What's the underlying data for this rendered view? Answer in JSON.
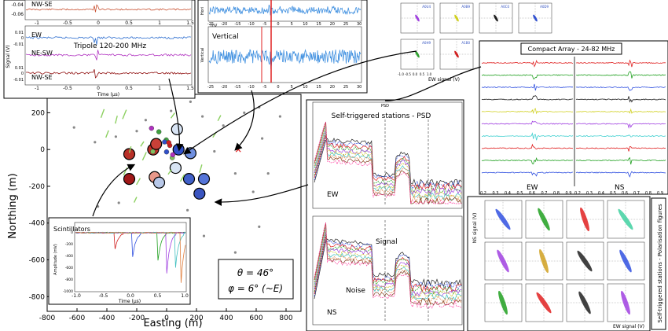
{
  "chart_data": [
    {
      "id": "main-map",
      "type": "scatter",
      "xlabel": "Easting (m)",
      "ylabel": "Northing (m)",
      "xlim": [
        -800,
        900
      ],
      "ylim": [
        -880,
        300
      ],
      "xticks": [
        -800,
        -600,
        -400,
        -200,
        0,
        200,
        400,
        600,
        800
      ],
      "yticks": [
        200,
        0,
        -200,
        -400,
        -600,
        -800
      ],
      "scintillators": [
        {
          "x": -90,
          "y": 0,
          "color": "#c03028"
        },
        {
          "x": 80,
          "y": 0,
          "color": "#3050c8"
        },
        {
          "x": 160,
          "y": -20,
          "color": "#7090e0"
        },
        {
          "x": -250,
          "y": -25,
          "color": "#b83028"
        },
        {
          "x": -250,
          "y": -160,
          "color": "#a01818"
        },
        {
          "x": -80,
          "y": -150,
          "color": "#e8988a"
        },
        {
          "x": 150,
          "y": -160,
          "color": "#4060c8"
        },
        {
          "x": 250,
          "y": -160,
          "color": "#5575d8"
        },
        {
          "x": 220,
          "y": -240,
          "color": "#3a55c0"
        },
        {
          "x": -70,
          "y": 30,
          "color": "#c84038"
        },
        {
          "x": 70,
          "y": 110,
          "color": "#d8e4f4"
        },
        {
          "x": 60,
          "y": -100,
          "color": "#d8e4f4"
        },
        {
          "x": -50,
          "y": -180,
          "color": "#b8c8e8"
        }
      ],
      "antennas": [
        {
          "x": -140,
          "y": 160
        },
        {
          "x": -340,
          "y": 70
        },
        {
          "x": -480,
          "y": 40
        },
        {
          "x": -200,
          "y": 100
        },
        {
          "x": 30,
          "y": 210
        },
        {
          "x": 160,
          "y": 260
        },
        {
          "x": 240,
          "y": 180
        },
        {
          "x": 380,
          "y": 130
        },
        {
          "x": 520,
          "y": 200
        },
        {
          "x": 640,
          "y": 60
        },
        {
          "x": 320,
          "y": -10
        },
        {
          "x": 460,
          "y": -130
        },
        {
          "x": 580,
          "y": -230
        },
        {
          "x": 680,
          "y": -130
        },
        {
          "x": 140,
          "y": -330
        },
        {
          "x": -320,
          "y": -290
        },
        {
          "x": -460,
          "y": -310
        },
        {
          "x": -120,
          "y": -480
        },
        {
          "x": 40,
          "y": -540
        },
        {
          "x": 250,
          "y": -470
        },
        {
          "x": 460,
          "y": -560
        },
        {
          "x": 620,
          "y": -420
        },
        {
          "x": 740,
          "y": -630
        },
        {
          "x": 100,
          "y": -700
        },
        {
          "x": -280,
          "y": -760
        },
        {
          "x": 380,
          "y": -800
        },
        {
          "x": 620,
          "y": 230
        },
        {
          "x": -620,
          "y": 120
        },
        {
          "x": 760,
          "y": 180
        }
      ],
      "annotation": {
        "theta": "θ = 46°",
        "phi": "φ = 6° (~E)"
      }
    },
    {
      "id": "tripole",
      "type": "line",
      "title": "Tripole 120-200 MHz",
      "ylabel": "Signal (V)",
      "xlabel": "Time (μs)",
      "xticks": [
        "-1",
        "-0.5",
        "0",
        "0.5",
        "1",
        "1.5"
      ],
      "top_yticks": [
        "-0.04",
        "-0.06"
      ],
      "yticks": [
        "0.01",
        "0",
        "-0.01",
        "0.01",
        "0",
        "-0.01"
      ],
      "series": [
        {
          "name": "NW-SE",
          "color": "#c85030"
        },
        {
          "name": "EW",
          "color": "#3070d0"
        },
        {
          "name": "NE-SW",
          "color": "#b030c0"
        },
        {
          "name": "NW-SE",
          "color": "#901010"
        }
      ]
    },
    {
      "id": "vertical",
      "type": "line",
      "title": "Vertical",
      "color": "#4090e0",
      "xticks": [
        "-25",
        "-20",
        "-15",
        "-10",
        "-5",
        "0",
        "5",
        "10",
        "15",
        "20",
        "25",
        "30"
      ],
      "ylabel_top": "Hori",
      "ylabel": "Vertical",
      "unit": "mV"
    },
    {
      "id": "small-polarisation",
      "type": "scatter",
      "xlabel": "EW signal (V)",
      "labels": [
        "A0U4",
        "A0B9",
        "A0C0",
        "A0D9",
        "A0H9",
        "A1B0"
      ],
      "colors": [
        "#a040e0",
        "#d0d020",
        "#202020",
        "#3050d0",
        "#30a030",
        "#d02020"
      ],
      "xticks": [
        "-1.0",
        "-0.5",
        "0.0",
        "0.5",
        "1.0"
      ]
    },
    {
      "id": "compact-array",
      "type": "line",
      "title": "Compact Array - 24-82 MHz",
      "column_labels": [
        "EW",
        "NS"
      ],
      "xticks": [
        "0.2",
        "0.3",
        "0.4",
        "0.5",
        "0.6",
        "0.7",
        "0.8",
        "0.9"
      ],
      "colors": [
        "#e02020",
        "#20a020",
        "#3050e0",
        "#202020",
        "#d0d020",
        "#a040e0",
        "#40d0d0",
        "#e02020",
        "#20a020",
        "#3050e0"
      ]
    },
    {
      "id": "scintillators-inset",
      "type": "line",
      "title": "Scintillators",
      "ylabel": "Amplitude (mV)",
      "xlabel": "Time (μs)",
      "xticks": [
        "-1.0",
        "-0.5",
        "0.0",
        "0.5",
        "1.0"
      ],
      "yticks": [
        "0",
        "-200",
        "-400",
        "-600",
        "-800",
        "-1000"
      ],
      "colors": [
        "#d02020",
        "#3050e0",
        "#20a020",
        "#a040e0",
        "#40c0c0",
        "#e08040"
      ]
    },
    {
      "id": "psd-ew",
      "type": "line",
      "title": "Self-triggered stations - PSD",
      "label": "EW",
      "header": "PSD"
    },
    {
      "id": "psd-ns",
      "type": "line",
      "label": "NS",
      "annotations": [
        "Signal",
        "Noise"
      ]
    },
    {
      "id": "polarisation-figures",
      "type": "scatter",
      "title": "Self-triggered stations - Polarisation figures",
      "xlabel": "EW signal (V)",
      "ylabel": "NS signal (V)",
      "colors": [
        "#3050e0",
        "#20a020",
        "#e02020",
        "#40d0a0",
        "#a040e0",
        "#d0a020",
        "#202020",
        "#3050e0",
        "#20a020",
        "#e02020",
        "#202020",
        "#a040e0"
      ]
    }
  ]
}
